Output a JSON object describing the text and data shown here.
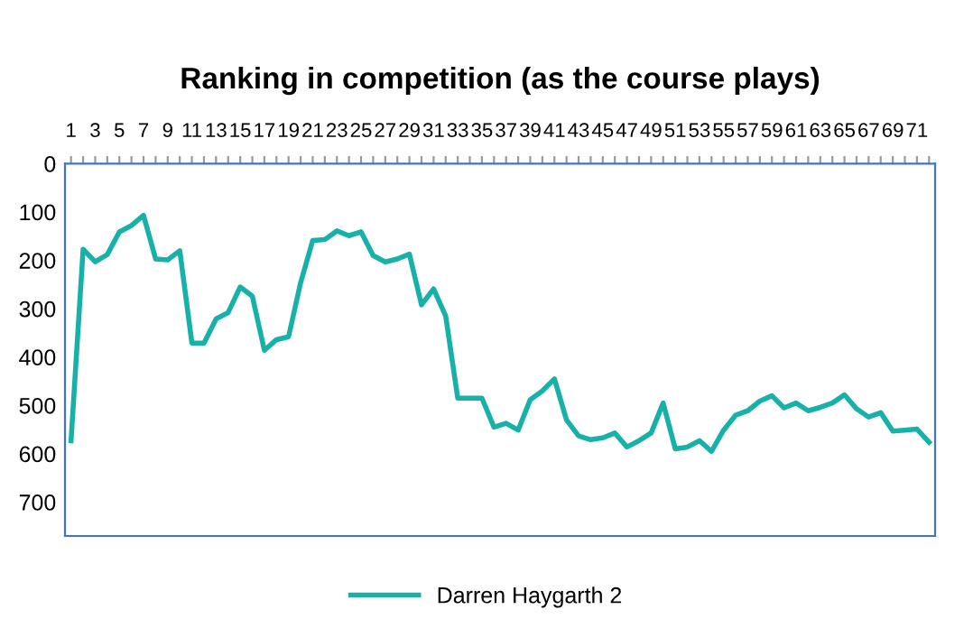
{
  "chart_data": {
    "type": "line",
    "title": "Ranking in competition (as the course plays)",
    "categories": [
      "1",
      null,
      "3",
      null,
      "5",
      null,
      "7",
      null,
      "9",
      null,
      "11",
      null,
      "13",
      null,
      "15",
      null,
      "17",
      null,
      "19",
      null,
      "21",
      null,
      "23",
      null,
      "25",
      null,
      "27",
      null,
      "29",
      null,
      "31",
      null,
      "33",
      null,
      "35",
      null,
      "37",
      null,
      "39",
      null,
      "41",
      null,
      "43",
      null,
      "45",
      null,
      "47",
      null,
      "49",
      null,
      "51",
      null,
      "53",
      null,
      "55",
      null,
      "57",
      null,
      "59",
      null,
      "61",
      null,
      "63",
      null,
      "65",
      null,
      "67",
      null,
      "69",
      null,
      "71",
      null
    ],
    "series": [
      {
        "name": "Darren Haygarth 2",
        "color": "#17b1aa",
        "values": [
          573,
          177,
          203,
          188,
          141,
          128,
          107,
          197,
          199,
          180,
          371,
          371,
          321,
          308,
          255,
          274,
          386,
          364,
          358,
          246,
          159,
          157,
          139,
          149,
          141,
          190,
          203,
          197,
          187,
          292,
          259,
          315,
          485,
          485,
          485,
          545,
          537,
          551,
          488,
          470,
          445,
          530,
          563,
          571,
          567,
          557,
          586,
          573,
          557,
          495,
          590,
          586,
          573,
          595,
          551,
          520,
          511,
          491,
          480,
          505,
          495,
          511,
          504,
          495,
          478,
          507,
          524,
          515,
          553,
          551,
          549,
          576
        ]
      }
    ],
    "ylim": [
      770,
      0
    ],
    "yticks": [
      0,
      100,
      200,
      300,
      400,
      500,
      600,
      700
    ],
    "grid": false,
    "legend": "bottom",
    "marker": "none",
    "line_style": "solid"
  }
}
